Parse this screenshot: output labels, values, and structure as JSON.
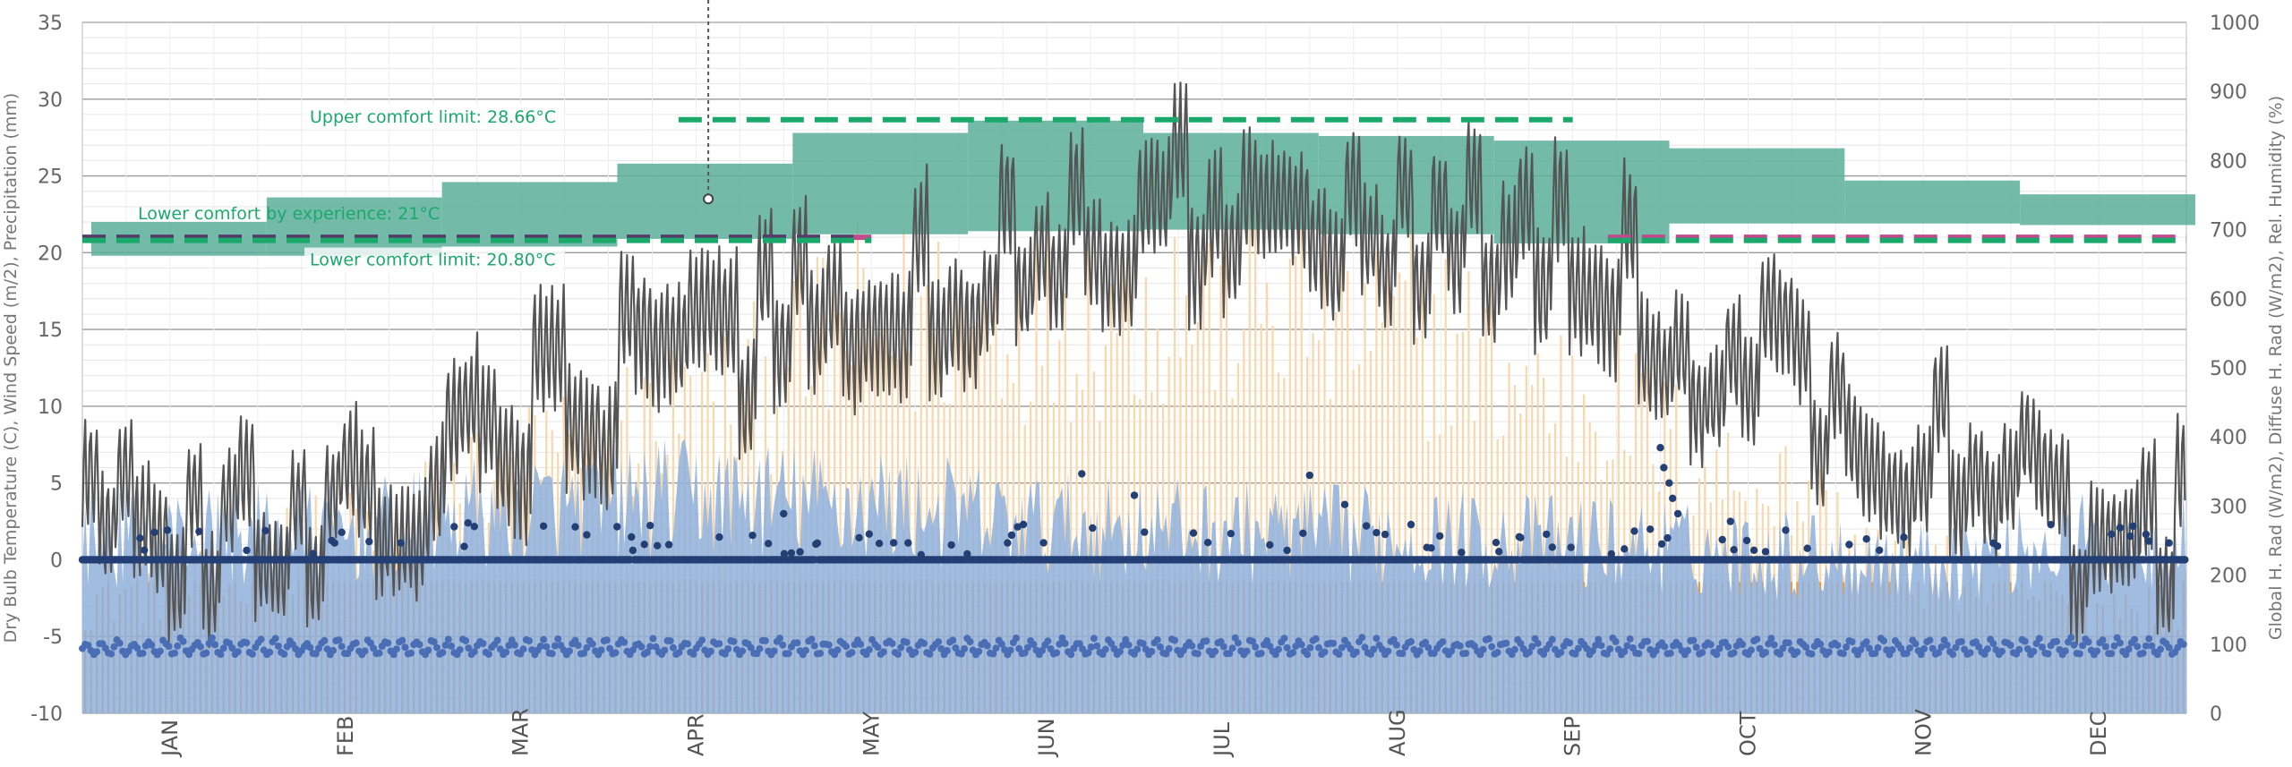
{
  "chart_data": {
    "type": "line",
    "left_axis": {
      "label": "Dry Bulb Temperature (C), Wind Speed (m/2), Precipitation (mm)",
      "ylim": [
        -10,
        35
      ],
      "ticks": [
        -10,
        -5,
        0,
        5,
        10,
        15,
        20,
        25,
        30,
        35
      ]
    },
    "right_axis": {
      "label": "Global H. Rad (W/m2), Diffuse H. Rad (W/m2), Rel. Humidity (%)",
      "ylim": [
        0,
        1000
      ],
      "ticks": [
        0,
        100,
        200,
        300,
        400,
        500,
        600,
        700,
        800,
        900,
        1000
      ]
    },
    "months": [
      "JAN",
      "FEB",
      "MAR",
      "APR",
      "MAY",
      "JUN",
      "JUL",
      "AUG",
      "SEP",
      "OCT",
      "NOV",
      "DEC"
    ],
    "grid": true,
    "comfort_band_monthly": {
      "lower": [
        19.8,
        19.8,
        20.4,
        20.9,
        21.2,
        21.4,
        21.5,
        21.2,
        20.6,
        21.9,
        21.9,
        21.8
      ],
      "upper": [
        22.0,
        23.6,
        24.6,
        25.8,
        27.8,
        28.6,
        27.8,
        27.6,
        27.3,
        26.8,
        24.7,
        23.8
      ],
      "color": "#5aaf99"
    },
    "annotations": [
      {
        "text": "Upper comfort limit: 28.66°C",
        "value": 28.66,
        "color": "#1aa96b"
      },
      {
        "text": "Lower comfort by experience: 21°C",
        "value": 21,
        "color": "#1aa96b"
      },
      {
        "text": "Lower comfort limit: 20.80°C",
        "value": 20.8,
        "color": "#1aa96b"
      }
    ],
    "series": [
      {
        "key": "temperature",
        "axis": "left",
        "color": "#555555",
        "style": "line",
        "monthly_mean": [
          2,
          3,
          9,
          13,
          16,
          21,
          23,
          22,
          19,
          13,
          7,
          2
        ],
        "monthly_swing": [
          6,
          6,
          7,
          7,
          7,
          6,
          7,
          6,
          7,
          6,
          6,
          6
        ]
      },
      {
        "key": "global_radiation",
        "axis": "right",
        "color": "#f0a040",
        "style": "bars",
        "monthly_peak": [
          230,
          330,
          470,
          560,
          720,
          760,
          770,
          720,
          590,
          430,
          260,
          200
        ]
      },
      {
        "key": "diffuse_radiation",
        "axis": "right",
        "color": "#8fb0dc",
        "style": "area",
        "monthly_peak": [
          330,
          340,
          380,
          400,
          390,
          350,
          340,
          330,
          320,
          300,
          290,
          320
        ]
      },
      {
        "key": "relative_humidity",
        "axis": "right",
        "color": "#4a6eb5",
        "style": "dots",
        "range": [
          85,
          110
        ]
      },
      {
        "key": "precipitation",
        "axis": "left",
        "color": "#233f74",
        "style": "dots",
        "baseline": 0,
        "max": 7.3
      }
    ],
    "reference_lines": [
      {
        "value": 28.66,
        "color": "#1aa96b",
        "segments": [
          [
            3.4,
            8.5
          ]
        ]
      },
      {
        "value": 21.0,
        "color": "#563a68",
        "segments": [
          [
            0,
            4.4
          ]
        ]
      },
      {
        "value": 21.0,
        "color": "#c24a8c",
        "segments": [
          [
            4.4,
            4.5
          ],
          [
            8.7,
            12
          ]
        ]
      },
      {
        "value": 20.8,
        "color": "#1aa96b",
        "segments": [
          [
            0,
            4.5
          ],
          [
            8.7,
            12
          ]
        ]
      }
    ],
    "cursor": {
      "month_position": 3.57,
      "value": 23.5
    }
  }
}
